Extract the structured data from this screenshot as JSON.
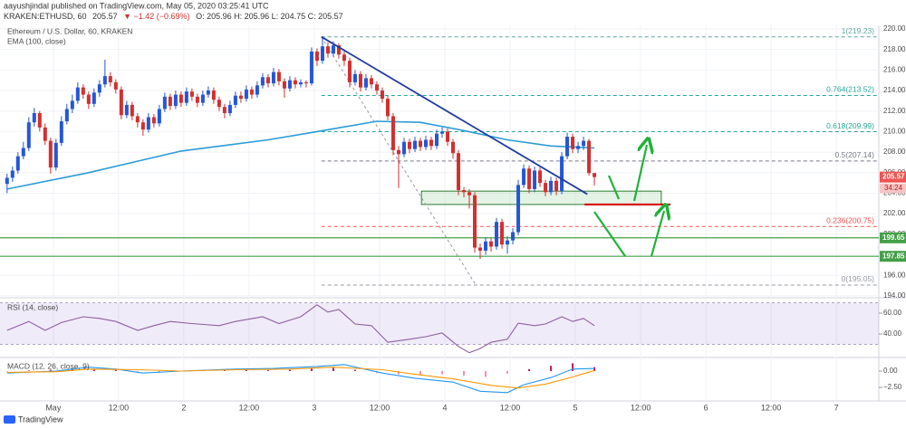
{
  "chart_data": {
    "type": "candlestick",
    "publisher": "aayushjindal published on TradingView.com, May 05, 2020 03:25:41 UTC",
    "symbol": "KRAKEN:ETHUSD, 60",
    "last": "205.57",
    "change": "▼ −1.42 (−0.69%)",
    "ohlc_text": "O: 205.96  H: 205.96  L: 204.75  C: 205.57",
    "title": "Ethereum / U.S. Dollar, 60, KRAKEN",
    "footer": "TradingView",
    "up_color": "#2457d6",
    "down_color": "#d32f2f",
    "grid": true,
    "xlim": [
      -1.3,
      160.3
    ],
    "xticks": [
      {
        "value": 8.5,
        "label": "May"
      },
      {
        "value": 20.5,
        "label": "12:00"
      },
      {
        "value": 32.5,
        "label": "2"
      },
      {
        "value": 44.5,
        "label": "12:00"
      },
      {
        "value": 56.5,
        "label": "3"
      },
      {
        "value": 68.5,
        "label": "12:00"
      },
      {
        "value": 80.5,
        "label": "4"
      },
      {
        "value": 92.5,
        "label": "12:00"
      },
      {
        "value": 104.5,
        "label": "5"
      },
      {
        "value": 116.5,
        "label": "12:00"
      },
      {
        "value": 128.5,
        "label": "6"
      },
      {
        "value": 140.5,
        "label": "12:00"
      },
      {
        "value": 152.5,
        "label": "7"
      }
    ],
    "ylim": [
      193.9,
      220.35
    ],
    "yticks": [
      {
        "value": 194,
        "label": "194.00"
      },
      {
        "value": 196,
        "label": "196.00"
      },
      {
        "value": 198,
        "label": "198.00"
      },
      {
        "value": 200,
        "label": "200.00"
      },
      {
        "value": 202,
        "label": "202.00"
      },
      {
        "value": 204,
        "label": "204.00"
      },
      {
        "value": 206,
        "label": "206.00"
      },
      {
        "value": 208,
        "label": "208.00"
      },
      {
        "value": 210,
        "label": "210.00"
      },
      {
        "value": 212,
        "label": "212.00"
      },
      {
        "value": 214,
        "label": "214.00"
      },
      {
        "value": 216,
        "label": "216.00"
      },
      {
        "value": 218,
        "label": "218.00"
      },
      {
        "value": 220,
        "label": "220.00"
      }
    ],
    "open": [
      204.9,
      205.5,
      206.2,
      207.6,
      208.4,
      210.9,
      211.8,
      210.4,
      209.1,
      206.5,
      208.9,
      211.0,
      212.2,
      213.0,
      214.3,
      213.6,
      212.7,
      213.8,
      214.6,
      215.4,
      214.8,
      214.1,
      211.6,
      212.6,
      211.5,
      210.9,
      210.2,
      211.4,
      210.8,
      212.2,
      213.4,
      212.5,
      213.6,
      212.8,
      213.9,
      213.4,
      212.8,
      213.6,
      214.0,
      213.1,
      212.4,
      211.8,
      212.6,
      213.5,
      213.2,
      214.1,
      213.6,
      214.5,
      215.3,
      214.7,
      215.8,
      214.9,
      214.2,
      215.0,
      214.6,
      214.8,
      214.7,
      217.8,
      216.9,
      218.3,
      217.6,
      218.4,
      217.5,
      216.9,
      214.8,
      215.6,
      214.3,
      215.2,
      214.6,
      214.0,
      213.2,
      211.5,
      208.2,
      207.8,
      209.0,
      208.3,
      209.1,
      208.5,
      209.2,
      208.6,
      209.8,
      210.0,
      209.0,
      207.9,
      204.3,
      204.1,
      203.8,
      198.7,
      198.4,
      199.3,
      198.8,
      201.2,
      199.0,
      199.4,
      200.2,
      204.8,
      206.4,
      204.4,
      206.2,
      205.0,
      204.1,
      205.2,
      204.2,
      207.6,
      209.5,
      208.3,
      208.6,
      209.1,
      205.96
    ],
    "high": [
      205.9,
      206.6,
      208.0,
      209.0,
      211.4,
      212.3,
      212.0,
      210.8,
      209.4,
      209.3,
      211.5,
      212.7,
      213.6,
      214.8,
      214.6,
      213.9,
      214.2,
      215.0,
      217.0,
      215.8,
      215.1,
      214.4,
      213.0,
      212.9,
      211.8,
      211.2,
      211.8,
      211.7,
      212.6,
      213.8,
      213.7,
      214.0,
      213.9,
      214.3,
      214.2,
      213.7,
      214.0,
      214.4,
      214.3,
      213.4,
      212.7,
      213.0,
      213.9,
      213.9,
      214.5,
      214.4,
      214.9,
      215.7,
      215.6,
      216.2,
      216.1,
      215.2,
      215.4,
      215.3,
      215.1,
      215.0,
      218.2,
      218.1,
      219.23,
      218.7,
      218.8,
      218.6,
      217.8,
      217.2,
      216.0,
      215.9,
      215.6,
      215.5,
      214.9,
      214.3,
      213.5,
      211.8,
      208.6,
      209.4,
      209.3,
      209.5,
      209.4,
      209.6,
      209.5,
      210.2,
      210.4,
      210.3,
      209.3,
      208.2,
      204.6,
      204.4,
      204.1,
      199.1,
      199.7,
      199.6,
      201.6,
      201.5,
      199.8,
      200.6,
      205.3,
      206.8,
      206.7,
      206.6,
      206.5,
      205.3,
      205.6,
      205.5,
      208.0,
      209.9,
      209.8,
      209.0,
      209.5,
      209.3,
      205.96
    ],
    "low": [
      204.0,
      205.1,
      205.9,
      207.3,
      208.1,
      210.5,
      210.0,
      208.7,
      205.9,
      206.2,
      208.6,
      210.7,
      211.8,
      212.7,
      213.2,
      212.2,
      212.4,
      213.4,
      214.3,
      214.4,
      213.7,
      211.2,
      211.3,
      211.1,
      210.4,
      209.6,
      209.9,
      210.4,
      210.5,
      211.9,
      212.1,
      212.2,
      212.4,
      212.5,
      213.0,
      212.4,
      212.5,
      213.3,
      212.7,
      212.0,
      211.3,
      211.5,
      212.3,
      212.8,
      212.9,
      213.2,
      213.3,
      214.2,
      214.3,
      214.4,
      214.5,
      213.3,
      213.9,
      214.2,
      214.3,
      214.3,
      214.5,
      216.4,
      216.6,
      217.2,
      217.3,
      217.1,
      216.4,
      214.3,
      214.5,
      213.9,
      214.0,
      214.2,
      213.6,
      212.8,
      211.1,
      207.7,
      204.5,
      207.5,
      207.9,
      208.0,
      208.1,
      208.2,
      208.2,
      208.3,
      209.4,
      208.6,
      207.4,
      203.8,
      203.6,
      202.5,
      198.2,
      197.6,
      198.0,
      198.3,
      198.5,
      198.6,
      198.1,
      199.0,
      199.9,
      204.5,
      204.0,
      204.1,
      204.6,
      203.7,
      203.8,
      203.8,
      203.9,
      207.3,
      207.9,
      207.9,
      208.2,
      205.7,
      204.75
    ],
    "close": [
      205.5,
      206.2,
      207.6,
      208.4,
      210.9,
      211.8,
      210.4,
      209.1,
      206.5,
      208.9,
      211.0,
      212.2,
      213.0,
      214.3,
      213.6,
      212.7,
      213.8,
      214.6,
      215.4,
      214.8,
      214.1,
      211.6,
      212.6,
      211.5,
      210.9,
      210.2,
      211.4,
      210.8,
      212.2,
      213.4,
      212.5,
      213.6,
      212.8,
      213.9,
      213.4,
      212.8,
      213.6,
      214.0,
      213.1,
      212.4,
      211.8,
      212.6,
      213.5,
      213.2,
      214.1,
      213.6,
      214.5,
      215.3,
      214.7,
      215.8,
      214.9,
      214.2,
      215.0,
      214.6,
      214.8,
      214.7,
      217.8,
      216.9,
      218.3,
      217.6,
      218.4,
      217.5,
      216.9,
      214.8,
      215.6,
      214.3,
      215.2,
      214.6,
      214.0,
      213.2,
      211.5,
      208.2,
      207.8,
      209.0,
      208.3,
      209.1,
      208.5,
      209.2,
      208.6,
      209.8,
      210.0,
      209.0,
      207.9,
      204.3,
      204.1,
      203.8,
      198.7,
      198.4,
      199.3,
      198.8,
      201.2,
      199.0,
      199.4,
      200.2,
      204.8,
      206.4,
      204.4,
      206.2,
      205.0,
      204.1,
      205.2,
      204.2,
      207.6,
      209.5,
      208.3,
      208.6,
      209.1,
      205.96,
      205.57
    ],
    "ema": {
      "name": "EMA (100, close)",
      "color": "#2a9bd8",
      "x": [
        0,
        15,
        32,
        48,
        57,
        68,
        76,
        84,
        92,
        100,
        108
      ],
      "values": [
        204.4,
        206.0,
        208.1,
        209.2,
        210.0,
        211.0,
        210.9,
        210.1,
        209.2,
        208.6,
        208.4
      ]
    },
    "fib_levels": [
      {
        "value": 219.23,
        "label": "1(219.23)",
        "color": "#5fa8a0"
      },
      {
        "value": 213.52,
        "label": "0.764(213.52)",
        "color": "#26a69a"
      },
      {
        "value": 209.99,
        "label": "0.618(209.99)",
        "color": "#26a69a"
      },
      {
        "value": 207.14,
        "label": "0.5(207.14)",
        "color": "#787b86"
      },
      {
        "value": 200.75,
        "label": "0.236(200.75)",
        "color": "#ef5350"
      },
      {
        "value": 195.05,
        "label": "0(195.05)",
        "color": "#9598a1"
      }
    ],
    "fib_anchor": {
      "x": [
        57.8,
        86.2
      ],
      "y": [
        219.23,
        195.05
      ],
      "color": "#9598a1"
    },
    "trendline": {
      "x": [
        57.8,
        106.7
      ],
      "y": [
        219.23,
        203.9
      ],
      "color": "#1f3a9e"
    },
    "zone": {
      "x": [
        76.2,
        120.3
      ],
      "y": [
        202.9,
        204.2
      ],
      "color": "#2e7d32"
    },
    "zone_line": {
      "x": [
        106.2,
        122
      ],
      "y": 202.9,
      "color": "#d50000"
    },
    "levels": [
      {
        "value": 199.65,
        "label": "199.65",
        "color": "#43a047"
      },
      {
        "value": 197.85,
        "label": "197.85",
        "color": "#43a047"
      }
    ],
    "last_price": {
      "value": 205.57,
      "label": "205.57",
      "color": "#ef5350"
    },
    "countdown": "34:24",
    "rsi": {
      "name": "RSI (14, close)",
      "color": "#8e5ea2",
      "ylim": [
        18.3,
        73.9
      ],
      "yticks": [
        {
          "value": 40,
          "label": "40.00"
        },
        {
          "value": 60,
          "label": "60.00"
        }
      ],
      "band": [
        30,
        70
      ],
      "x": [
        0,
        4,
        7,
        10,
        14,
        17,
        20,
        24,
        27,
        30,
        34,
        39,
        42,
        47,
        50,
        54,
        57,
        59,
        61,
        64,
        67,
        70,
        74,
        77,
        80,
        83,
        85,
        87,
        89,
        92,
        94,
        97,
        99,
        102,
        104,
        106,
        108
      ],
      "values": [
        43.5,
        52,
        43.5,
        51,
        56.5,
        55,
        52,
        43.5,
        48,
        52,
        50,
        48,
        52,
        56.5,
        50,
        56.5,
        68,
        61,
        63.5,
        49.6,
        48,
        32,
        35,
        37.4,
        41,
        28,
        22,
        26,
        32,
        35,
        50.4,
        48,
        49.6,
        56.5,
        52,
        55,
        48
      ]
    },
    "macd": {
      "name": "MACD (12, 26, close, 9)",
      "ylim": [
        -4.44,
        1.94
      ],
      "yticks": [
        {
          "value": 0,
          "label": "0.00"
        },
        {
          "value": -2.5,
          "label": "−2.50"
        }
      ],
      "macd": {
        "color": "#2196f3",
        "x": [
          0,
          9,
          15,
          20,
          25,
          32,
          42,
          49,
          57,
          62,
          69,
          75,
          82,
          87,
          92,
          95,
          100,
          104,
          108
        ],
        "values": [
          -0.3,
          0,
          0.6,
          0.3,
          -0.3,
          0,
          0.3,
          0.4,
          0.7,
          1.0,
          -0.3,
          -1.1,
          -1.7,
          -3.1,
          -3.3,
          -2.1,
          -1.0,
          0.3,
          0.4
        ]
      },
      "signal": {
        "color": "#ff9800",
        "x": [
          0,
          9,
          15,
          24,
          32,
          42,
          52,
          60,
          69,
          75,
          82,
          89,
          94,
          99,
          104,
          108
        ],
        "values": [
          -0.2,
          -0.1,
          0.3,
          0.2,
          0,
          0.2,
          0.3,
          0.6,
          0.2,
          -0.5,
          -1.2,
          -2.2,
          -2.6,
          -2.0,
          -0.9,
          0.1
        ]
      },
      "histogram": {
        "up_color": "#c2185b",
        "down_color": "#f48fb1",
        "x": [
          0,
          4,
          8,
          12,
          16,
          20,
          24,
          28,
          32,
          36,
          40,
          44,
          48,
          52,
          56,
          60,
          64,
          68,
          72,
          76,
          80,
          84,
          88,
          92,
          96,
          100,
          104,
          108
        ],
        "values": [
          -0.1,
          0.1,
          0.2,
          0.3,
          0.35,
          0.2,
          -0.1,
          -0.2,
          0,
          0.1,
          0.1,
          0.15,
          0.15,
          0.2,
          0.4,
          0.5,
          0.2,
          -0.3,
          -0.5,
          -0.6,
          -0.5,
          -0.7,
          -0.9,
          -0.4,
          0.3,
          0.8,
          1.2,
          0.6
        ]
      }
    }
  }
}
